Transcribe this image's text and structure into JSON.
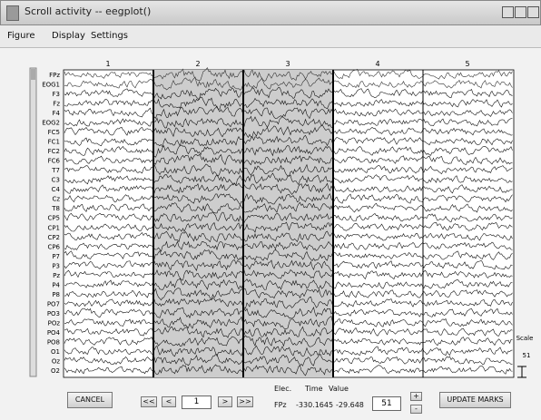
{
  "window": {
    "title": "Scroll activity -- eegplot()"
  },
  "menu": [
    "Figure",
    "Display",
    "Settings"
  ],
  "epochs": [
    "1",
    "2",
    "3",
    "4",
    "5"
  ],
  "channels": [
    "FPz",
    "EOG1",
    "F3",
    "Fz",
    "F4",
    "EOG2",
    "FC5",
    "FC1",
    "FC2",
    "FC6",
    "T7",
    "C3",
    "C4",
    "Cz",
    "T8",
    "CP5",
    "CP1",
    "CP2",
    "CP6",
    "P7",
    "P3",
    "Pz",
    "P4",
    "P8",
    "PO7",
    "PO3",
    "POz",
    "PO4",
    "PO8",
    "O1",
    "Oz",
    "O2"
  ],
  "scale": {
    "label": "Scale",
    "value": "51"
  },
  "controls": {
    "cancel": "CANCEL",
    "first": "<<",
    "prev": "<",
    "epoch": "1",
    "next": ">",
    "last": ">>",
    "spacing": "51",
    "plus": "+",
    "minus": "-",
    "update": "UPDATE MARKS"
  },
  "readout": {
    "headers": [
      "Elec.",
      "Time",
      "Value"
    ],
    "values": [
      "FPz",
      "-330.1645",
      "-29.648"
    ]
  }
}
